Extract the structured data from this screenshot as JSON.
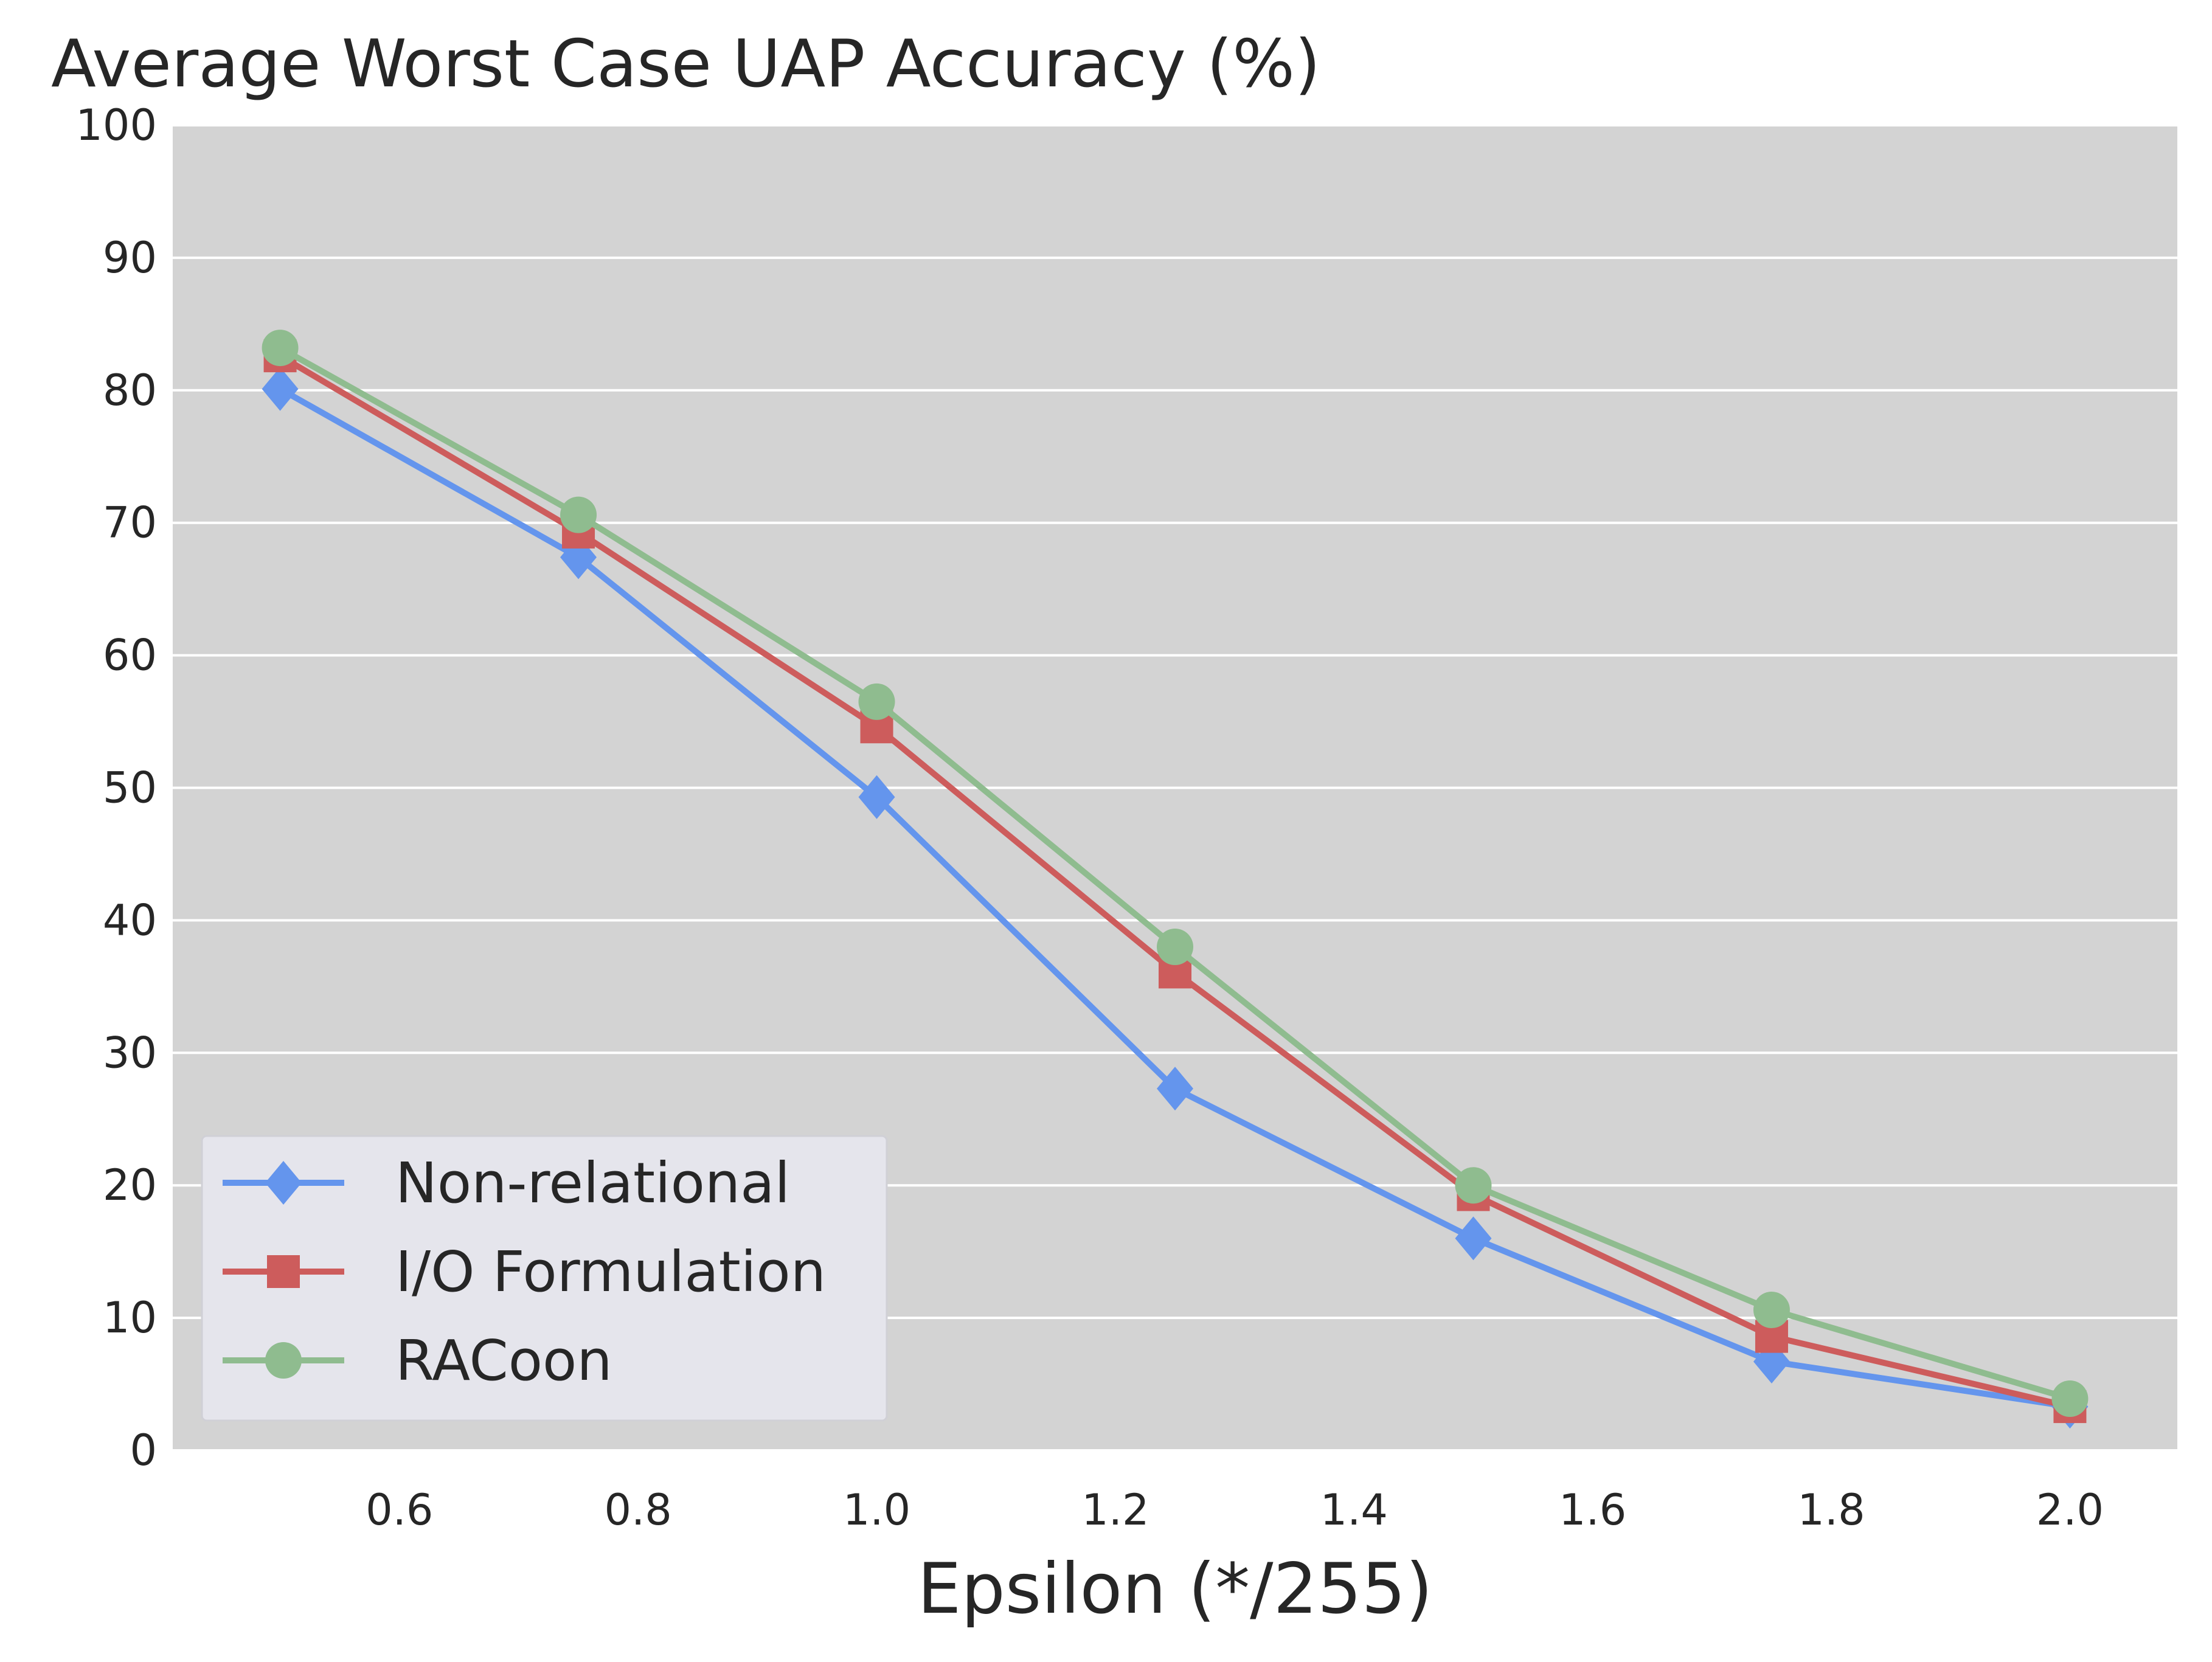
{
  "chart_data": {
    "type": "line",
    "title": "Average Worst Case UAP Accuracy (%)",
    "xlabel": "Epsilon (*/255)",
    "ylabel": "",
    "x": [
      0.5,
      0.75,
      1.0,
      1.25,
      1.5,
      1.75,
      2.0
    ],
    "xlim": [
      0.41,
      2.09
    ],
    "ylim": [
      0,
      100
    ],
    "xticks": [
      0.6,
      0.8,
      1.0,
      1.2,
      1.4,
      1.6,
      1.8,
      2.0
    ],
    "xtick_labels": [
      "0.6",
      "0.8",
      "1.0",
      "1.2",
      "1.4",
      "1.6",
      "1.8",
      "2.0"
    ],
    "yticks": [
      0,
      10,
      20,
      30,
      40,
      50,
      60,
      70,
      80,
      90,
      100
    ],
    "ytick_labels": [
      "0",
      "10",
      "20",
      "30",
      "40",
      "50",
      "60",
      "70",
      "80",
      "90",
      "100"
    ],
    "grid": true,
    "legend_position": "lower-left",
    "series": [
      {
        "name": "Non-relational",
        "color": "#6495ED",
        "marker": "diamond",
        "values": [
          80.1,
          67.4,
          49.3,
          27.3,
          16.0,
          6.7,
          3.3
        ]
      },
      {
        "name": "I/O Formulation",
        "color": "#CD5C5C",
        "marker": "square",
        "values": [
          82.6,
          69.3,
          54.6,
          36.1,
          19.3,
          8.6,
          3.3
        ]
      },
      {
        "name": "RACoon",
        "color": "#8FBC8F",
        "marker": "circle",
        "values": [
          83.2,
          70.6,
          56.5,
          38.0,
          20.0,
          10.6,
          3.9
        ]
      }
    ]
  }
}
